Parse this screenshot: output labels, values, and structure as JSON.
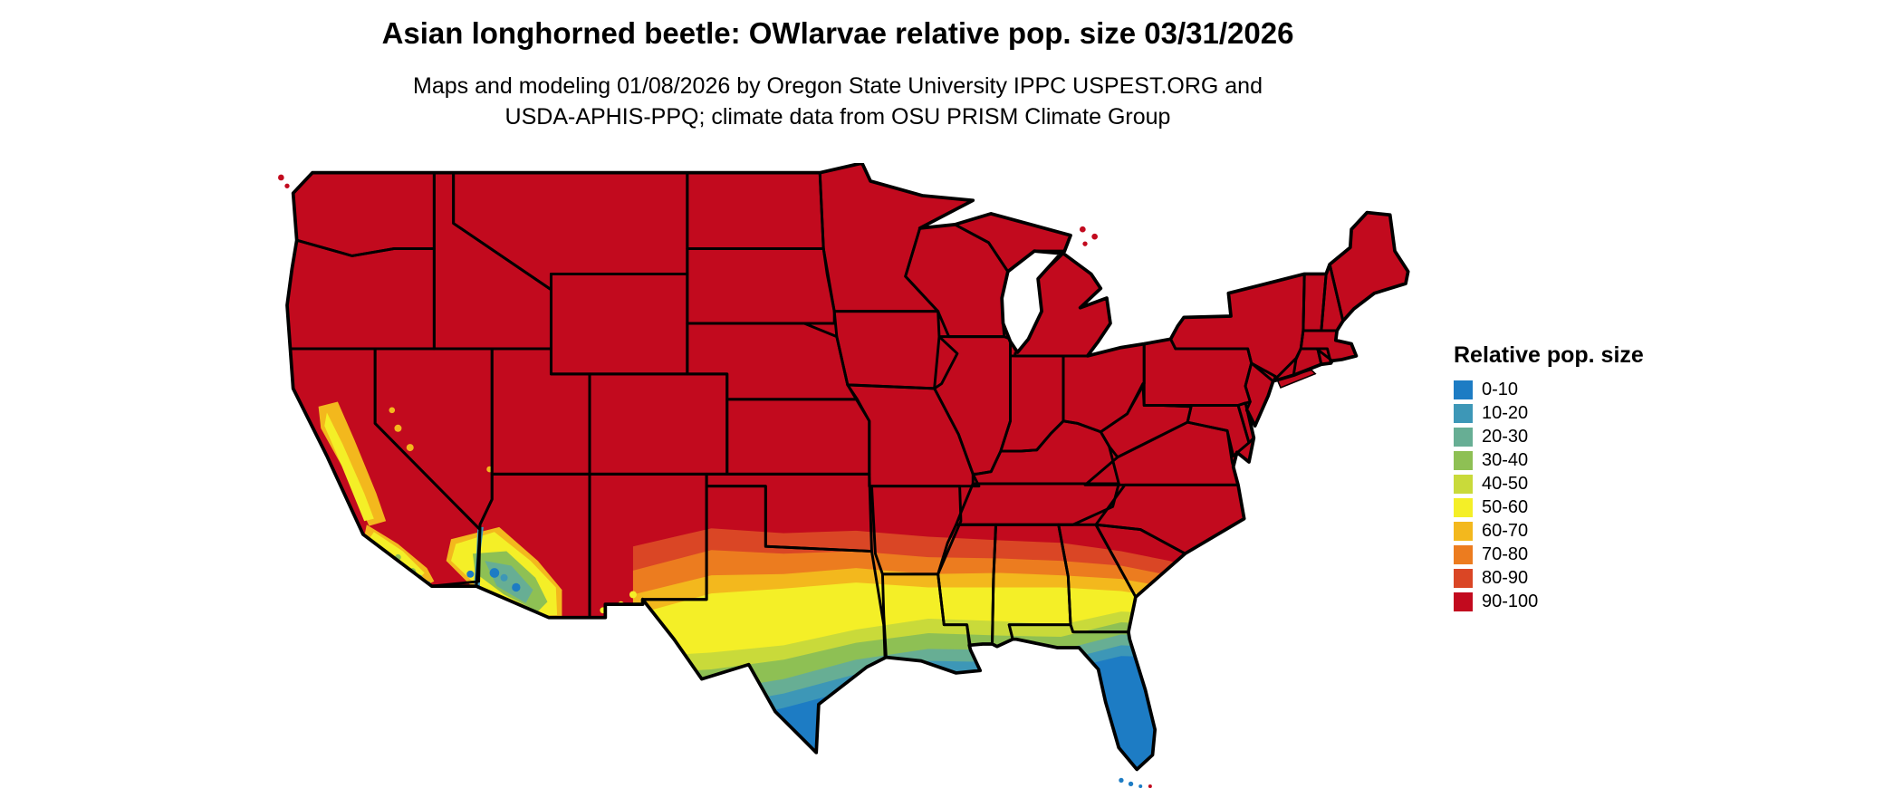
{
  "title": "Asian longhorned beetle: OWlarvae relative pop. size 03/31/2026",
  "subtitle": {
    "line1": "Maps and modeling 01/08/2026 by Oregon State University IPPC USPEST.ORG and",
    "line2": "USDA-APHIS-PPQ; climate data from OSU PRISM Climate Group"
  },
  "legend": {
    "title": "Relative pop. size",
    "bins": [
      {
        "label": "0-10",
        "color": "#1d7cc4"
      },
      {
        "label": "10-20",
        "color": "#3d97b7"
      },
      {
        "label": "20-30",
        "color": "#67ae94"
      },
      {
        "label": "30-40",
        "color": "#8ec054"
      },
      {
        "label": "40-50",
        "color": "#c9da3a"
      },
      {
        "label": "50-60",
        "color": "#f4ef27"
      },
      {
        "label": "60-70",
        "color": "#f3b81d"
      },
      {
        "label": "70-80",
        "color": "#ec7c1f"
      },
      {
        "label": "80-90",
        "color": "#da4625"
      },
      {
        "label": "90-100",
        "color": "#c20a1e"
      }
    ]
  },
  "map": {
    "border_color": "#000000",
    "background_color": "#ffffff"
  }
}
